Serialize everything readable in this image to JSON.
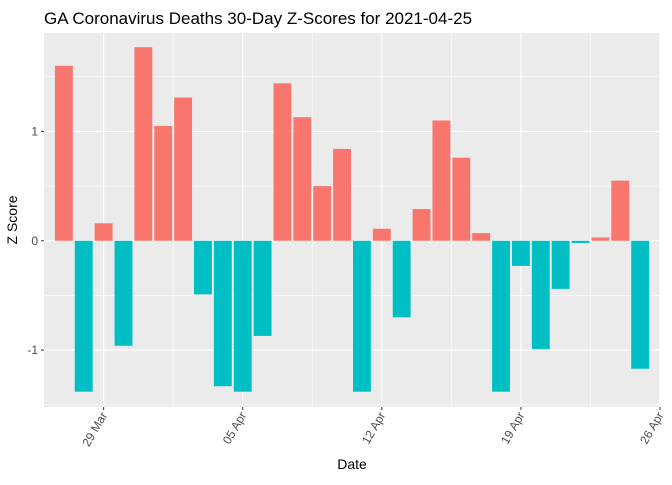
{
  "chart_data": {
    "type": "bar",
    "title": "GA Coronavirus Deaths 30-Day Z-Scores for 2021-04-25",
    "xlabel": "Date",
    "ylabel": "Z Score",
    "x_start": "2021-03-27",
    "x": [
      "2021-03-27",
      "2021-03-28",
      "2021-03-29",
      "2021-03-30",
      "2021-03-31",
      "2021-04-01",
      "2021-04-02",
      "2021-04-03",
      "2021-04-04",
      "2021-04-05",
      "2021-04-06",
      "2021-04-07",
      "2021-04-08",
      "2021-04-09",
      "2021-04-10",
      "2021-04-11",
      "2021-04-12",
      "2021-04-13",
      "2021-04-14",
      "2021-04-15",
      "2021-04-16",
      "2021-04-17",
      "2021-04-18",
      "2021-04-19",
      "2021-04-20",
      "2021-04-21",
      "2021-04-22",
      "2021-04-23",
      "2021-04-24",
      "2021-04-25"
    ],
    "values": [
      1.6,
      -1.38,
      0.16,
      -0.96,
      1.77,
      1.05,
      1.31,
      -0.49,
      -1.33,
      -1.38,
      -0.87,
      1.44,
      1.13,
      0.5,
      0.84,
      -1.38,
      0.11,
      -0.7,
      0.29,
      1.1,
      0.76,
      0.07,
      -1.38,
      -0.23,
      -0.99,
      -0.44,
      -0.02,
      0.03,
      0.55,
      -1.17
    ],
    "positive_color": "#F8766D",
    "negative_color": "#00BFC4",
    "ylim": [
      -1.52,
      1.9
    ],
    "yticks": [
      -1,
      0,
      1
    ],
    "ytick_labels": [
      "-1",
      "0",
      "1"
    ],
    "xticks": [
      "2021-03-29",
      "2021-04-05",
      "2021-04-12",
      "2021-04-19",
      "2021-04-26"
    ],
    "xtick_labels": [
      "29 Mar",
      "05 Apr",
      "12 Apr",
      "19 Apr",
      "26 Apr"
    ],
    "xlim": [
      "2021-03-26",
      "2021-04-26"
    ],
    "grid": true,
    "panel_background": "#EBEBEB"
  }
}
